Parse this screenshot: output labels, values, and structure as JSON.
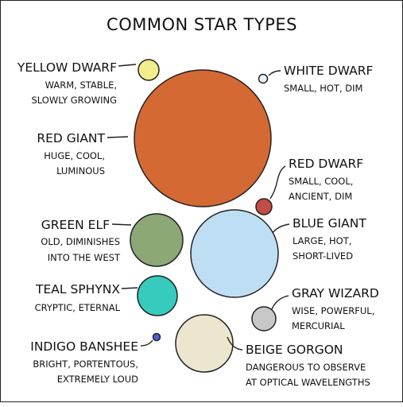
{
  "title": "COMMON STAR TYPES",
  "stars": [
    {
      "id": "yellow-dwarf",
      "name": "YELLOW DWARF",
      "desc": [
        "WARM, STABLE,",
        "SLOWLY GROWING"
      ],
      "color": "#f2ee8c"
    },
    {
      "id": "white-dwarf",
      "name": "WHITE DWARF",
      "desc": [
        "SMALL, HOT, DIM"
      ],
      "color": "#e9f1f8"
    },
    {
      "id": "red-giant",
      "name": "RED GIANT",
      "desc": [
        "HUGE, COOL,",
        "LUMINOUS"
      ],
      "color": "#d46934"
    },
    {
      "id": "red-dwarf",
      "name": "RED DWARF",
      "desc": [
        "SMALL, COOL,",
        "ANCIENT, DIM"
      ],
      "color": "#c44b46"
    },
    {
      "id": "green-elf",
      "name": "GREEN ELF",
      "desc": [
        "OLD, DIMINISHES",
        "INTO THE WEST"
      ],
      "color": "#8ba876"
    },
    {
      "id": "blue-giant",
      "name": "BLUE GIANT",
      "desc": [
        "LARGE, HOT,",
        "SHORT-LIVED"
      ],
      "color": "#bedff3"
    },
    {
      "id": "teal-sphynx",
      "name": "TEAL SPHYNX",
      "desc": [
        "CRYPTIC, ETERNAL"
      ],
      "color": "#36cbbd"
    },
    {
      "id": "gray-wizard",
      "name": "GRAY WIZARD",
      "desc": [
        "WISE, POWERFUL,",
        "MERCURIAL"
      ],
      "color": "#c8c8c8"
    },
    {
      "id": "indigo-banshee",
      "name": "INDIGO BANSHEE",
      "desc": [
        "BRIGHT, PORTENTOUS,",
        "EXTREMELY LOUD"
      ],
      "color": "#4f5fd0"
    },
    {
      "id": "beige-gorgon",
      "name": "BEIGE GORGON",
      "desc": [
        "DANGEROUS TO OBSERVE",
        "AT OPTICAL WAVELENGTHS"
      ],
      "color": "#ede6ce"
    }
  ]
}
